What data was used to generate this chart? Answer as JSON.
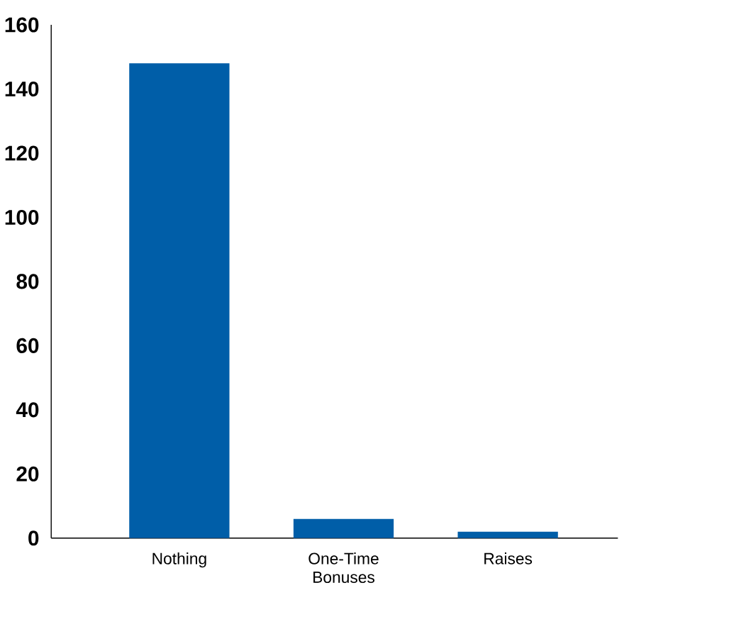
{
  "chart_data": {
    "type": "bar",
    "categories": [
      "Nothing",
      "One-Time Bonuses",
      "Raises"
    ],
    "values": [
      148,
      6,
      2
    ],
    "color": "#005ea8",
    "ylim": [
      0,
      160
    ],
    "yticks": [
      0,
      20,
      40,
      60,
      80,
      100,
      120,
      140,
      160
    ]
  }
}
